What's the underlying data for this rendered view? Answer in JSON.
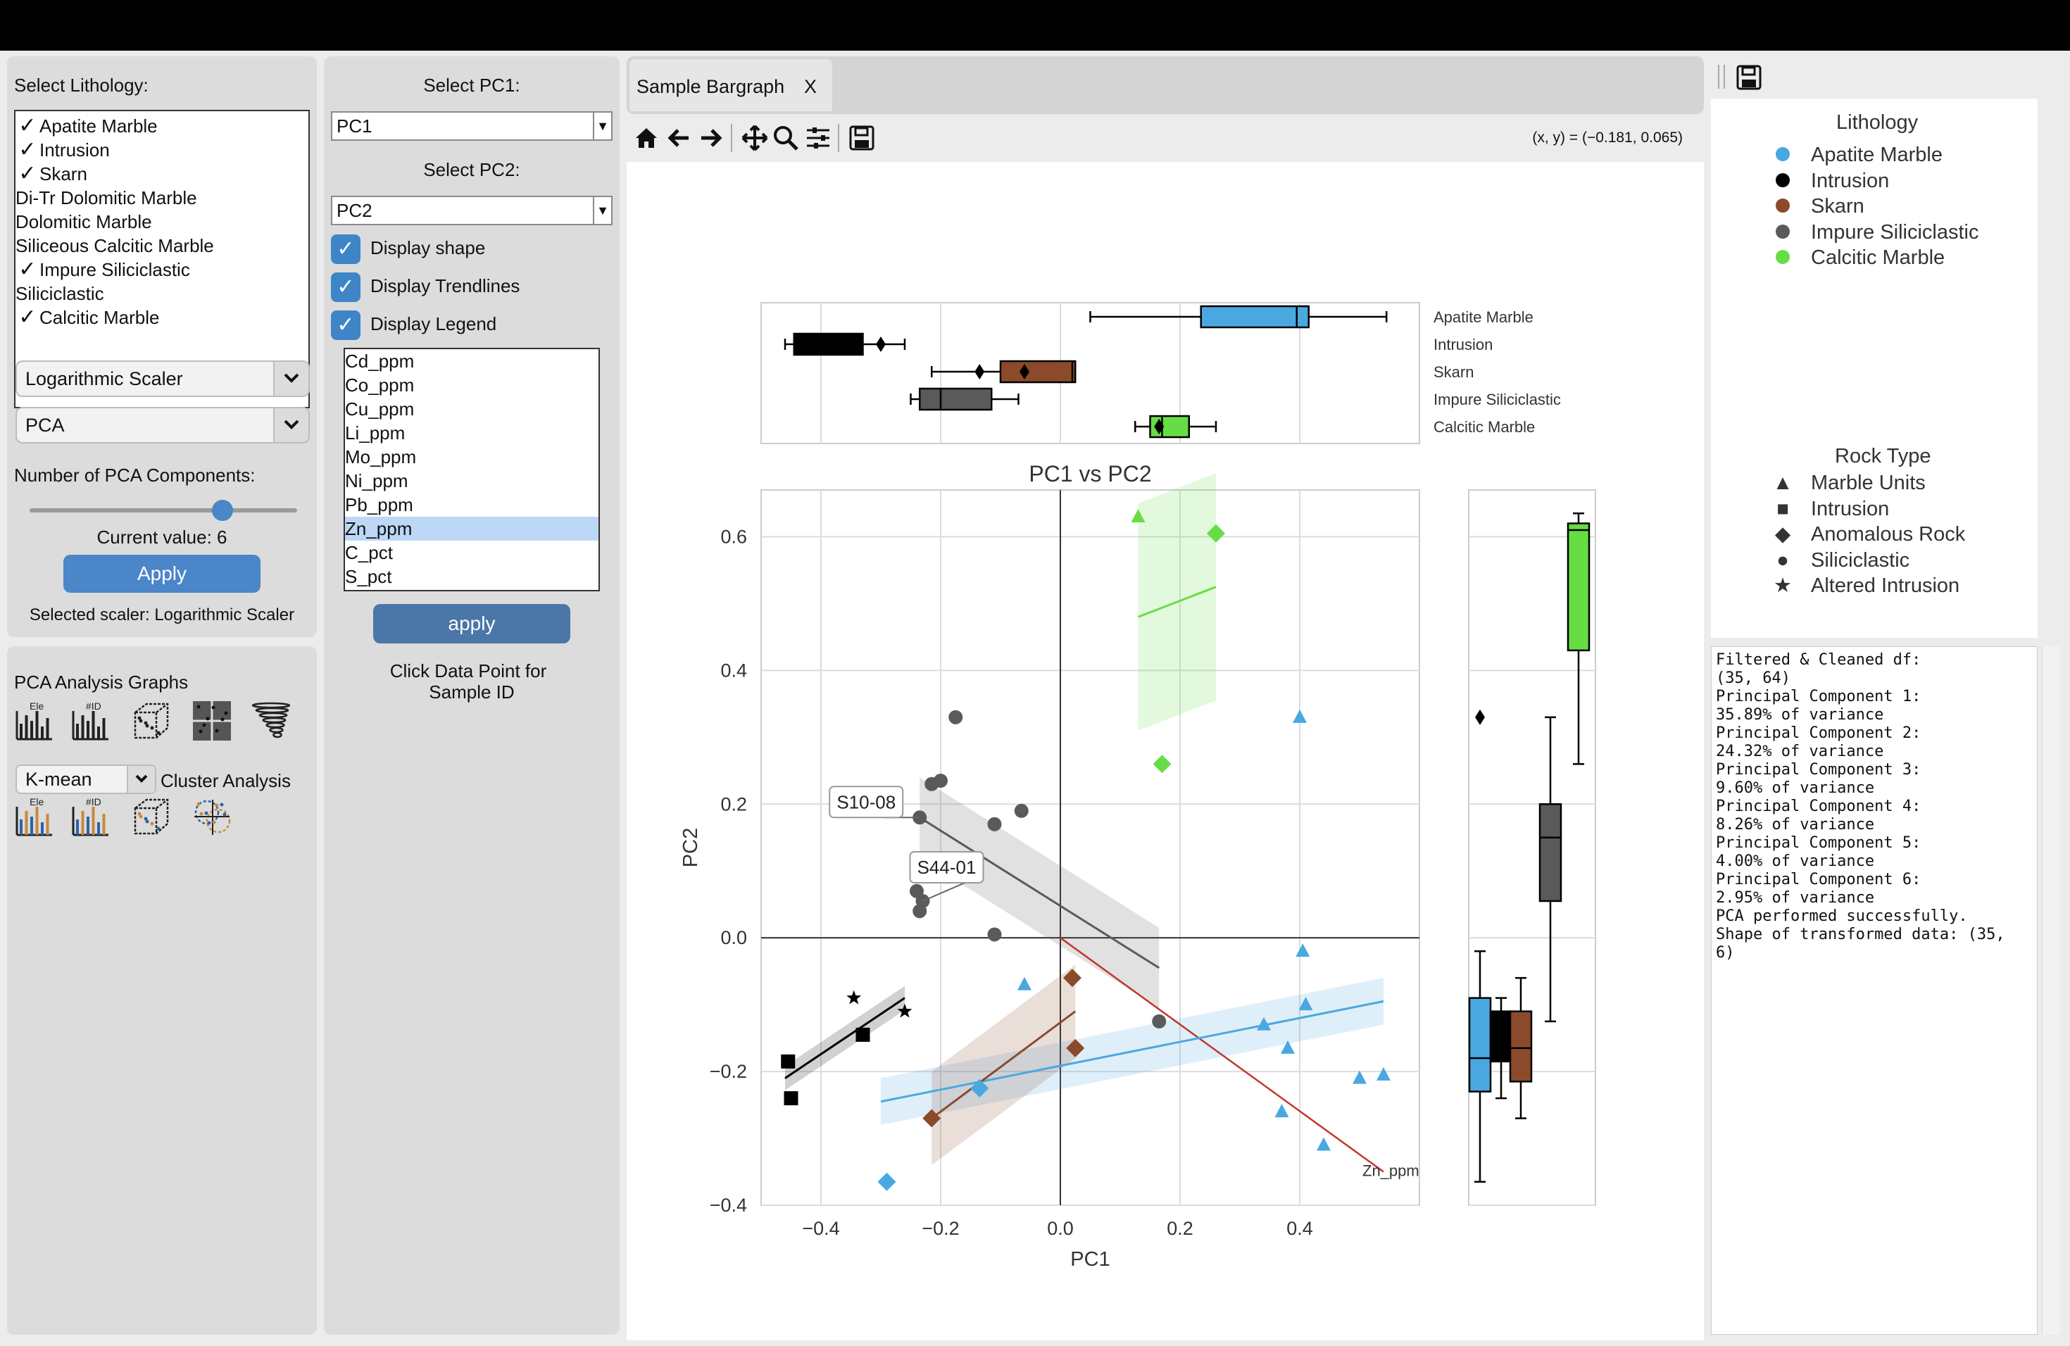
{
  "left": {
    "lithology_label": "Select Lithology:",
    "lithology_items": [
      {
        "label": "Apatite Marble",
        "checked": true
      },
      {
        "label": "Intrusion",
        "checked": true
      },
      {
        "label": "Skarn",
        "checked": true
      },
      {
        "label": "Di-Tr Dolomitic Marble",
        "checked": false
      },
      {
        "label": "Dolomitic Marble",
        "checked": false
      },
      {
        "label": "Siliceous Calcitic Marble",
        "checked": false
      },
      {
        "label": "Impure Siliciclastic",
        "checked": true
      },
      {
        "label": "Siliciclastic",
        "checked": false
      },
      {
        "label": "Calcitic Marble",
        "checked": true
      }
    ],
    "scaler_select": "Logarithmic Scaler",
    "method_select": "PCA",
    "components_label": "Number of PCA Components:",
    "slider_fraction": 0.72,
    "current_value": "Current value: 6",
    "apply_label": "Apply",
    "selected_scaler": "Selected scaler: Logarithmic Scaler",
    "graphs_label": "PCA Analysis Graphs",
    "cluster_select": "K-mean",
    "cluster_label": "Cluster Analysis",
    "icons": [
      "bar-chart-ele-icon",
      "bar-chart-id-icon",
      "3d-cube-icon",
      "grid-cluster-icon",
      "tornado-icon",
      "bar-chart-ele-icon",
      "bar-chart-id-icon",
      "3d-cube-icon",
      "cluster-scatter-icon"
    ],
    "icon_text_ele": "Ele",
    "icon_text_id": "#ID"
  },
  "middle": {
    "pc1_label": "Select PC1:",
    "pc1_value": "PC1",
    "pc2_label": "Select PC2:",
    "pc2_value": "PC2",
    "display_shape": "Display shape",
    "display_trendlines": "Display Trendlines",
    "display_legend": "Display Legend",
    "elements": [
      "Cd_ppm",
      "Co_ppm",
      "Cu_ppm",
      "Li_ppm",
      "Mo_ppm",
      "Ni_ppm",
      "Pb_ppm",
      "Zn_ppm",
      "C_pct",
      "S_pct"
    ],
    "selected_element": "Zn_ppm",
    "apply_label": "apply",
    "hint": [
      "Click Data Point for",
      "Sample ID"
    ]
  },
  "tab": {
    "label": "Sample Bargraph",
    "close": "X"
  },
  "toolbar": {
    "icons": [
      "home-icon",
      "back-arrow-icon",
      "forward-arrow-icon",
      "pan-icon",
      "zoom-icon",
      "configure-icon",
      "save-icon"
    ],
    "coords": "(x, y) = (−0.181, 0.065)"
  },
  "colors": {
    "apatite": "#4aa8e0",
    "intrusion": "#000000",
    "skarn": "#8b4a2b",
    "impure": "#5a5a5a",
    "calcitic": "#66dd44",
    "loading": "#c0392b",
    "button": "#4a86c8"
  },
  "chart_data": {
    "type": "scatter",
    "title": "PC1 vs PC2",
    "xlabel": "PC1",
    "ylabel": "PC2",
    "xlim": [
      -0.5,
      0.6
    ],
    "ylim": [
      -0.4,
      0.67
    ],
    "xticks": [
      "−0.4",
      "−0.2",
      "0.0",
      "0.2",
      "0.4"
    ],
    "xtick_values": [
      -0.4,
      -0.2,
      0.0,
      0.2,
      0.4
    ],
    "yticks": [
      "−0.4",
      "−0.2",
      "0.0",
      "0.2",
      "0.4",
      "0.6"
    ],
    "ytick_values": [
      -0.4,
      -0.2,
      0.0,
      0.2,
      0.4,
      0.6
    ],
    "grid": true,
    "series": [
      {
        "name": "Apatite Marble",
        "color": "#4aa8e0",
        "points": [
          {
            "x": 0.4,
            "y": 0.33,
            "m": "^"
          },
          {
            "x": 0.405,
            "y": -0.02,
            "m": "^"
          },
          {
            "x": 0.41,
            "y": -0.1,
            "m": "^"
          },
          {
            "x": 0.34,
            "y": -0.13,
            "m": "^"
          },
          {
            "x": 0.38,
            "y": -0.165,
            "m": "^"
          },
          {
            "x": 0.5,
            "y": -0.21,
            "m": "^"
          },
          {
            "x": 0.54,
            "y": -0.205,
            "m": "^"
          },
          {
            "x": 0.37,
            "y": -0.26,
            "m": "^"
          },
          {
            "x": 0.44,
            "y": -0.31,
            "m": "^"
          },
          {
            "x": -0.06,
            "y": -0.07,
            "m": "^"
          },
          {
            "x": -0.135,
            "y": -0.225,
            "m": "D"
          },
          {
            "x": -0.29,
            "y": -0.365,
            "m": "D"
          }
        ],
        "trend": [
          [
            -0.3,
            -0.245
          ],
          [
            0.54,
            -0.095
          ]
        ]
      },
      {
        "name": "Intrusion",
        "color": "#000000",
        "points": [
          {
            "x": -0.455,
            "y": -0.185,
            "m": "s"
          },
          {
            "x": -0.45,
            "y": -0.24,
            "m": "s"
          },
          {
            "x": -0.33,
            "y": -0.145,
            "m": "s"
          },
          {
            "x": -0.345,
            "y": -0.09,
            "m": "*"
          },
          {
            "x": -0.26,
            "y": -0.11,
            "m": "*"
          }
        ],
        "trend": [
          [
            -0.46,
            -0.21
          ],
          [
            -0.26,
            -0.09
          ]
        ]
      },
      {
        "name": "Skarn",
        "color": "#8b4a2b",
        "points": [
          {
            "x": 0.02,
            "y": -0.06,
            "m": "D"
          },
          {
            "x": 0.025,
            "y": -0.165,
            "m": "D"
          },
          {
            "x": -0.215,
            "y": -0.27,
            "m": "D"
          }
        ],
        "trend": [
          [
            -0.215,
            -0.27
          ],
          [
            0.025,
            -0.11
          ]
        ]
      },
      {
        "name": "Impure Siliciclastic",
        "color": "#5a5a5a",
        "points": [
          {
            "x": -0.175,
            "y": 0.33
          },
          {
            "x": -0.215,
            "y": 0.23
          },
          {
            "x": -0.2,
            "y": 0.235
          },
          {
            "x": -0.065,
            "y": 0.19
          },
          {
            "x": -0.11,
            "y": 0.17
          },
          {
            "x": -0.235,
            "y": 0.18
          },
          {
            "x": -0.24,
            "y": 0.07
          },
          {
            "x": -0.23,
            "y": 0.055
          },
          {
            "x": -0.235,
            "y": 0.04
          },
          {
            "x": -0.11,
            "y": 0.005
          },
          {
            "x": 0.165,
            "y": -0.125
          }
        ],
        "trend": [
          [
            -0.235,
            0.18
          ],
          [
            0.165,
            -0.045
          ]
        ]
      },
      {
        "name": "Calcitic Marble",
        "color": "#66dd44",
        "points": [
          {
            "x": 0.13,
            "y": 0.63,
            "m": "^"
          },
          {
            "x": 0.26,
            "y": 0.605,
            "m": "D"
          },
          {
            "x": 0.17,
            "y": 0.26,
            "m": "D"
          }
        ],
        "trend": [
          [
            0.13,
            0.48
          ],
          [
            0.26,
            0.525
          ]
        ]
      }
    ],
    "annotations": [
      {
        "text": "S10-08",
        "x": -0.235,
        "y": 0.18
      },
      {
        "text": "S44-01",
        "x": -0.23,
        "y": 0.055
      }
    ],
    "loading_vector": {
      "label": "Zn_ppm",
      "x": 0.54,
      "y": -0.35
    },
    "top_box": {
      "categories": [
        "Apatite Marble",
        "Intrusion",
        "Skarn",
        "Impure Siliciclastic",
        "Calcitic Marble"
      ],
      "boxes": [
        {
          "min": 0.05,
          "q1": 0.235,
          "med": 0.395,
          "q3": 0.415,
          "max": 0.545,
          "outliers": []
        },
        {
          "min": -0.46,
          "q1": -0.445,
          "med": -0.445,
          "q3": -0.33,
          "max": -0.26,
          "outliers": [
            -0.3
          ]
        },
        {
          "min": -0.215,
          "q1": -0.1,
          "med": 0.02,
          "q3": 0.025,
          "max": 0.025,
          "outliers": [
            -0.135,
            -0.06
          ]
        },
        {
          "min": -0.25,
          "q1": -0.235,
          "med": -0.2,
          "q3": -0.115,
          "max": -0.07,
          "outliers": []
        },
        {
          "min": 0.125,
          "q1": 0.15,
          "med": 0.17,
          "q3": 0.215,
          "max": 0.26,
          "outliers": [
            0.165
          ]
        }
      ]
    },
    "right_box": {
      "boxes": [
        {
          "min": -0.365,
          "q1": -0.23,
          "med": -0.18,
          "q3": -0.09,
          "max": -0.02,
          "outliers": [
            0.33
          ]
        },
        {
          "min": -0.24,
          "q1": -0.185,
          "med": -0.145,
          "q3": -0.11,
          "max": -0.09,
          "outliers": []
        },
        {
          "min": -0.27,
          "q1": -0.215,
          "med": -0.165,
          "q3": -0.11,
          "max": -0.06,
          "outliers": []
        },
        {
          "min": -0.125,
          "q1": 0.055,
          "med": 0.15,
          "q3": 0.2,
          "max": 0.33,
          "outliers": []
        },
        {
          "min": 0.26,
          "q1": 0.43,
          "med": 0.61,
          "q3": 0.62,
          "max": 0.635,
          "outliers": []
        }
      ]
    }
  },
  "legend": {
    "lithology_title": "Lithology",
    "lithology": [
      {
        "label": "Apatite Marble",
        "color": "#4aa8e0"
      },
      {
        "label": "Intrusion",
        "color": "#000000"
      },
      {
        "label": "Skarn",
        "color": "#8b4a2b"
      },
      {
        "label": "Impure Siliciclastic",
        "color": "#5a5a5a"
      },
      {
        "label": "Calcitic Marble",
        "color": "#66dd44"
      }
    ],
    "rock_title": "Rock Type",
    "rock": [
      {
        "label": "Marble Units",
        "marker": "▲"
      },
      {
        "label": "Intrusion",
        "marker": "■"
      },
      {
        "label": "Anomalous Rock",
        "marker": "◆"
      },
      {
        "label": "Siliciclastic",
        "marker": "●"
      },
      {
        "label": "Altered Intrusion",
        "marker": "★"
      }
    ]
  },
  "console_text": "Filtered & Cleaned df:\n(35, 64)\nPrincipal Component 1:\n35.89% of variance\nPrincipal Component 2:\n24.32% of variance\nPrincipal Component 3:\n9.60% of variance\nPrincipal Component 4:\n8.26% of variance\nPrincipal Component 5:\n4.00% of variance\nPrincipal Component 6:\n2.95% of variance\nPCA performed successfully.\nShape of transformed data: (35, 6)"
}
